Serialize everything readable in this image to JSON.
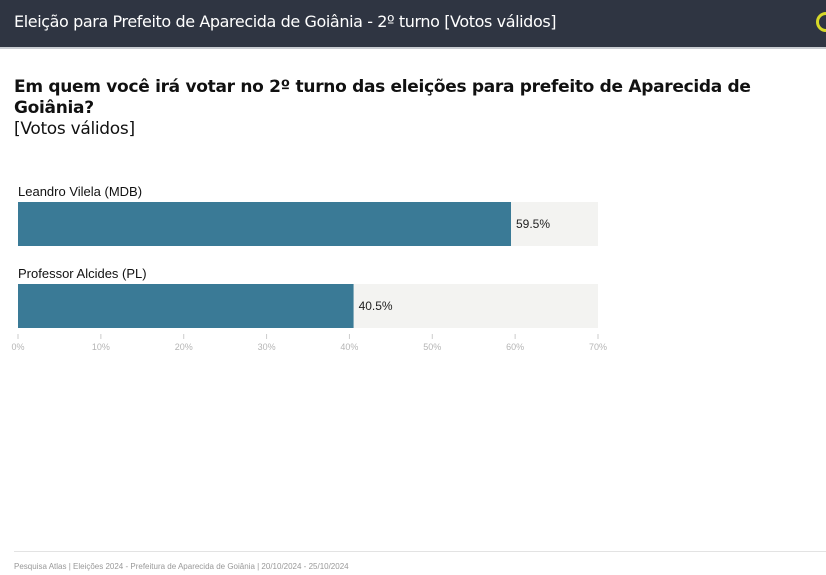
{
  "header": {
    "title": "Eleição para Prefeito de Aparecida de Goiânia - 2º turno [Votos válidos]",
    "logo_icon": "atlas-logo-icon"
  },
  "question": {
    "title": "Em quem você irá votar no 2º turno das eleições para prefeito de Aparecida de Goiânia?",
    "subtitle": "[Votos válidos]"
  },
  "chart_data": {
    "type": "bar",
    "orientation": "horizontal",
    "categories": [
      "Leandro Vilela (MDB)",
      "Professor Alcides (PL)"
    ],
    "values": [
      59.5,
      40.5
    ],
    "value_labels": [
      "59.5%",
      "40.5%"
    ],
    "xlim": [
      0,
      70
    ],
    "ticks": [
      0,
      10,
      20,
      30,
      40,
      50,
      60,
      70
    ],
    "tick_labels": [
      "0%",
      "10%",
      "20%",
      "30%",
      "40%",
      "50%",
      "60%",
      "70%"
    ],
    "bar_color": "#3a7a96",
    "track_color": "#f3f3f1"
  },
  "footer": {
    "text": "Pesquisa Atlas  |  Eleições 2024 - Prefeitura de Aparecida de Goiânia | 20/10/2024 - 25/10/2024"
  }
}
